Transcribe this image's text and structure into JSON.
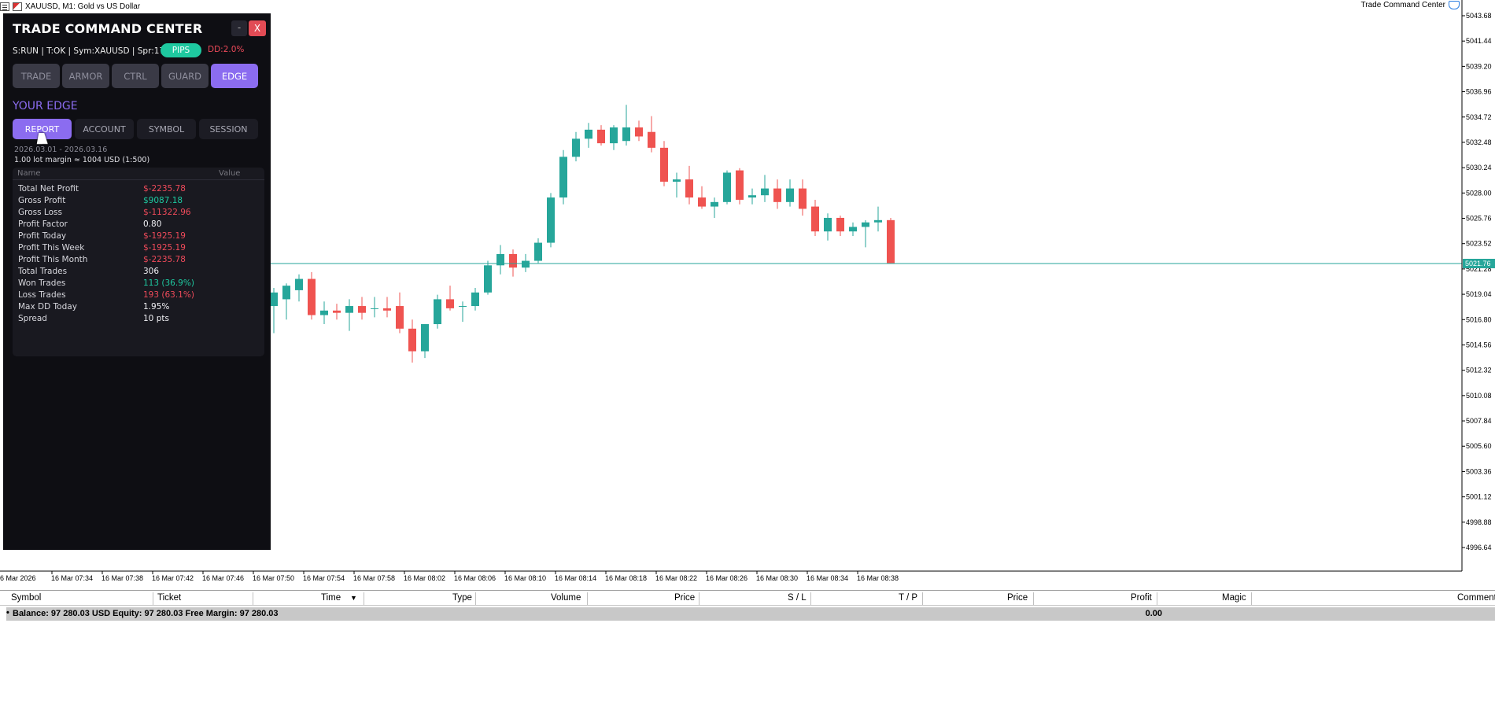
{
  "window": {
    "chart_title": "XAUUSD, M1:  Gold vs US Dollar",
    "ea_name": "Trade Command Center"
  },
  "panel": {
    "title": "TRADE COMMAND CENTER",
    "minimize_label": "-",
    "close_label": "X",
    "status_line": "S:RUN | T:OK | Sym:XAUUSD | Spr:17",
    "pips_label": "PIPS",
    "dd_label": "DD:2.0%",
    "main_tabs": [
      "TRADE",
      "ARMOR",
      "CTRL",
      "GUARD",
      "EDGE"
    ],
    "active_main_tab": "EDGE",
    "section_title": "YOUR EDGE",
    "sub_tabs": [
      "REPORT",
      "ACCOUNT",
      "SYMBOL",
      "SESSION"
    ],
    "active_sub_tab": "REPORT",
    "period": "2026.03.01 - 2026.03.16",
    "margin_note": "1.00 lot margin ≈ 1004 USD (1:500)",
    "stats_header": {
      "name": "Name",
      "value": "Value"
    },
    "stats": [
      {
        "name": "Total Net Profit",
        "value": "$-2235.78",
        "tone": "neg"
      },
      {
        "name": "Gross Profit",
        "value": "$9087.18",
        "tone": "pos"
      },
      {
        "name": "Gross Loss",
        "value": "$-11322.96",
        "tone": "neg"
      },
      {
        "name": "Profit Factor",
        "value": "0.80",
        "tone": "neu"
      },
      {
        "name": "Profit Today",
        "value": "$-1925.19",
        "tone": "neg"
      },
      {
        "name": "Profit This Week",
        "value": "$-1925.19",
        "tone": "neg"
      },
      {
        "name": "Profit This Month",
        "value": "$-2235.78",
        "tone": "neg"
      },
      {
        "name": "Total Trades",
        "value": "306",
        "tone": "neu"
      },
      {
        "name": "Won Trades",
        "value": "113 (36.9%)",
        "tone": "pos"
      },
      {
        "name": "Loss Trades",
        "value": "193 (63.1%)",
        "tone": "neg"
      },
      {
        "name": "Max DD Today",
        "value": "1.95%",
        "tone": "neu"
      },
      {
        "name": "Spread",
        "value": "10 pts",
        "tone": "neu"
      }
    ],
    "colors": {
      "accent": "#8b6cf0",
      "positive": "#1ec9a0",
      "negative": "#ef4a5a",
      "neutral": "#f0f0f4",
      "bg": "#0e0e13"
    }
  },
  "chart_data": {
    "type": "candlestick",
    "symbol": "XAUUSD",
    "timeframe": "M1",
    "price_ticks": [
      "5043.68",
      "5041.44",
      "5039.20",
      "5036.96",
      "5034.72",
      "5032.48",
      "5030.24",
      "5028.00",
      "5025.76",
      "5023.52",
      "5021.28",
      "5019.04",
      "5016.80",
      "5014.56",
      "5012.32",
      "5010.08",
      "5007.84",
      "5005.60",
      "5003.36",
      "5001.12",
      "4998.88",
      "4996.64"
    ],
    "current_price": "5021.76",
    "time_ticks": [
      "16 Mar 2026",
      "16 Mar 07:34",
      "16 Mar 07:38",
      "16 Mar 07:42",
      "16 Mar 07:46",
      "16 Mar 07:50",
      "16 Mar 07:54",
      "16 Mar 07:58",
      "16 Mar 08:02",
      "16 Mar 08:06",
      "16 Mar 08:10",
      "16 Mar 08:14",
      "16 Mar 08:18",
      "16 Mar 08:22",
      "16 Mar 08:26",
      "16 Mar 08:30",
      "16 Mar 08:34",
      "16 Mar 08:38"
    ],
    "ylim": [
      4995.0,
      5045.0
    ],
    "candles": [
      {
        "o": 5018.0,
        "h": 5019.6,
        "l": 5015.6,
        "c": 5019.2
      },
      {
        "o": 5018.6,
        "h": 5020.0,
        "l": 5016.8,
        "c": 5019.8
      },
      {
        "o": 5019.4,
        "h": 5020.8,
        "l": 5018.4,
        "c": 5020.4
      },
      {
        "o": 5020.4,
        "h": 5021.0,
        "l": 5016.8,
        "c": 5017.2
      },
      {
        "o": 5017.2,
        "h": 5018.4,
        "l": 5016.4,
        "c": 5017.6
      },
      {
        "o": 5017.6,
        "h": 5018.2,
        "l": 5016.8,
        "c": 5017.4
      },
      {
        "o": 5017.4,
        "h": 5018.6,
        "l": 5015.8,
        "c": 5018.0
      },
      {
        "o": 5018.0,
        "h": 5018.8,
        "l": 5016.8,
        "c": 5017.4
      },
      {
        "o": 5017.8,
        "h": 5018.8,
        "l": 5017.0,
        "c": 5017.8
      },
      {
        "o": 5017.8,
        "h": 5018.8,
        "l": 5017.0,
        "c": 5017.6
      },
      {
        "o": 5018.0,
        "h": 5019.2,
        "l": 5015.6,
        "c": 5016.0
      },
      {
        "o": 5016.0,
        "h": 5016.8,
        "l": 5013.0,
        "c": 5014.0
      },
      {
        "o": 5014.0,
        "h": 5016.4,
        "l": 5013.4,
        "c": 5016.4
      },
      {
        "o": 5016.4,
        "h": 5019.0,
        "l": 5016.0,
        "c": 5018.6
      },
      {
        "o": 5018.6,
        "h": 5019.8,
        "l": 5017.6,
        "c": 5017.8
      },
      {
        "o": 5018.0,
        "h": 5018.4,
        "l": 5016.6,
        "c": 5018.0
      },
      {
        "o": 5018.0,
        "h": 5019.6,
        "l": 5017.6,
        "c": 5019.2
      },
      {
        "o": 5019.2,
        "h": 5022.0,
        "l": 5019.0,
        "c": 5021.6
      },
      {
        "o": 5021.6,
        "h": 5023.4,
        "l": 5020.8,
        "c": 5022.6
      },
      {
        "o": 5022.6,
        "h": 5023.0,
        "l": 5020.6,
        "c": 5021.4
      },
      {
        "o": 5021.4,
        "h": 5022.6,
        "l": 5021.0,
        "c": 5022.0
      },
      {
        "o": 5022.0,
        "h": 5024.0,
        "l": 5021.8,
        "c": 5023.6
      },
      {
        "o": 5023.6,
        "h": 5028.0,
        "l": 5023.2,
        "c": 5027.6
      },
      {
        "o": 5027.6,
        "h": 5031.8,
        "l": 5027.0,
        "c": 5031.2
      },
      {
        "o": 5031.2,
        "h": 5033.4,
        "l": 5030.8,
        "c": 5032.8
      },
      {
        "o": 5032.8,
        "h": 5034.2,
        "l": 5032.0,
        "c": 5033.6
      },
      {
        "o": 5033.6,
        "h": 5034.0,
        "l": 5032.2,
        "c": 5032.4
      },
      {
        "o": 5032.4,
        "h": 5034.0,
        "l": 5031.8,
        "c": 5033.8
      },
      {
        "o": 5032.6,
        "h": 5035.8,
        "l": 5032.2,
        "c": 5033.8
      },
      {
        "o": 5033.8,
        "h": 5034.4,
        "l": 5032.6,
        "c": 5033.0
      },
      {
        "o": 5033.4,
        "h": 5034.8,
        "l": 5031.6,
        "c": 5032.0
      },
      {
        "o": 5032.0,
        "h": 5032.6,
        "l": 5028.6,
        "c": 5029.0
      },
      {
        "o": 5029.0,
        "h": 5029.8,
        "l": 5027.6,
        "c": 5029.2
      },
      {
        "o": 5029.2,
        "h": 5030.4,
        "l": 5027.0,
        "c": 5027.6
      },
      {
        "o": 5027.6,
        "h": 5028.6,
        "l": 5026.6,
        "c": 5026.8
      },
      {
        "o": 5026.8,
        "h": 5027.6,
        "l": 5025.8,
        "c": 5027.2
      },
      {
        "o": 5027.2,
        "h": 5030.0,
        "l": 5027.0,
        "c": 5029.8
      },
      {
        "o": 5030.0,
        "h": 5030.2,
        "l": 5027.0,
        "c": 5027.4
      },
      {
        "o": 5027.6,
        "h": 5028.4,
        "l": 5027.0,
        "c": 5027.8
      },
      {
        "o": 5027.8,
        "h": 5029.6,
        "l": 5027.2,
        "c": 5028.4
      },
      {
        "o": 5028.4,
        "h": 5029.2,
        "l": 5026.6,
        "c": 5027.2
      },
      {
        "o": 5027.2,
        "h": 5029.2,
        "l": 5026.8,
        "c": 5028.4
      },
      {
        "o": 5028.4,
        "h": 5029.2,
        "l": 5026.0,
        "c": 5026.6
      },
      {
        "o": 5026.8,
        "h": 5027.4,
        "l": 5024.2,
        "c": 5024.6
      },
      {
        "o": 5024.6,
        "h": 5026.2,
        "l": 5023.8,
        "c": 5025.8
      },
      {
        "o": 5025.8,
        "h": 5026.0,
        "l": 5024.2,
        "c": 5024.6
      },
      {
        "o": 5024.6,
        "h": 5025.4,
        "l": 5024.2,
        "c": 5025.0
      },
      {
        "o": 5025.0,
        "h": 5025.6,
        "l": 5023.2,
        "c": 5025.4
      },
      {
        "o": 5025.4,
        "h": 5026.8,
        "l": 5024.6,
        "c": 5025.6
      },
      {
        "o": 5025.6,
        "h": 5025.8,
        "l": 5021.8,
        "c": 5021.8
      }
    ]
  },
  "terminal": {
    "columns": [
      "Symbol",
      "Ticket",
      "Time",
      "Type",
      "Volume",
      "Price",
      "S / L",
      "T / P",
      "Price",
      "Profit",
      "Magic",
      "Comment"
    ],
    "balance_text": "Balance: 97 280.03 USD  Equity: 97 280.03  Free Margin: 97 280.03",
    "profit_total": "0.00"
  }
}
